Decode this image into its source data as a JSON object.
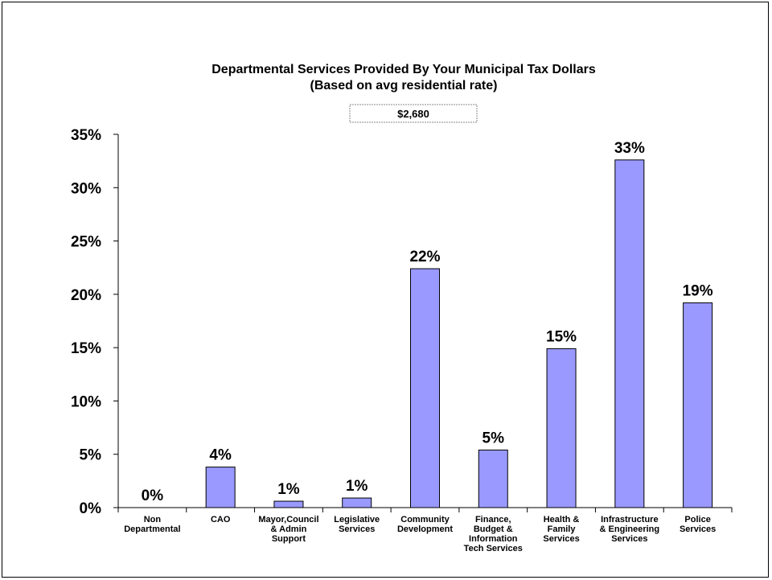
{
  "chart_data": {
    "type": "bar",
    "title": "Departmental Services Provided By Your Municipal Tax Dollars",
    "subtitle": "(Based on avg residential rate)",
    "total_box": "$2,680",
    "categories": [
      [
        "Non",
        "Departmental"
      ],
      [
        "CAO"
      ],
      [
        "Mayor,Council",
        "& Admin",
        "Support"
      ],
      [
        "Legislative",
        "Services"
      ],
      [
        "Community",
        "Development"
      ],
      [
        "Finance,",
        "Budget &",
        "Information",
        "Tech Services"
      ],
      [
        "Health &",
        "Family",
        "Services"
      ],
      [
        "Infrastructure",
        "& Engineering",
        "Services"
      ],
      [
        "Police",
        "Services"
      ]
    ],
    "values": [
      0.0,
      3.8,
      0.6,
      0.9,
      22.4,
      5.4,
      14.9,
      32.6,
      19.2
    ],
    "data_labels": [
      "0%",
      "4%",
      "1%",
      "1%",
      "22%",
      "5%",
      "15%",
      "33%",
      "19%"
    ],
    "yticks": [
      "0%",
      "5%",
      "10%",
      "15%",
      "20%",
      "25%",
      "30%",
      "35%"
    ],
    "ylim": [
      0,
      35
    ],
    "bar_color": "#9999ff",
    "bar_stroke": "#000000",
    "grid": false,
    "legend": "none"
  }
}
